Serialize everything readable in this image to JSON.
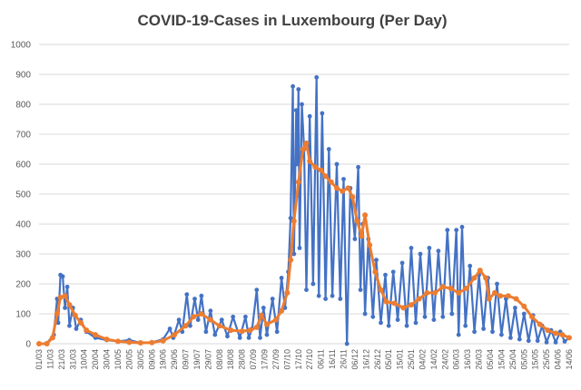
{
  "chart_data": {
    "type": "line",
    "title": "COVID-19-Cases in Luxembourg (Per Day)",
    "xlabel": "",
    "ylabel": "",
    "ylim": [
      0,
      1000
    ],
    "yticks": [
      0,
      100,
      200,
      300,
      400,
      500,
      600,
      700,
      800,
      900,
      1000
    ],
    "grid": true,
    "legend": "none",
    "x_start": "2020-03-01",
    "x_end": "2021-06-14",
    "x_tick_labels": [
      "01/03",
      "11/03",
      "21/03",
      "31/03",
      "10/04",
      "20/04",
      "30/04",
      "10/05",
      "20/05",
      "30/05",
      "09/06",
      "19/06",
      "29/06",
      "09/07",
      "19/07",
      "29/07",
      "08/08",
      "18/08",
      "28/08",
      "07/09",
      "17/09",
      "27/09",
      "07/10",
      "17/10",
      "27/10",
      "06/11",
      "16/11",
      "26/11",
      "06/12",
      "16/12",
      "26/12",
      "05/01",
      "15/01",
      "25/01",
      "04/02",
      "14/02",
      "24/02",
      "06/03",
      "16/03",
      "26/03",
      "05/04",
      "15/04",
      "25/04",
      "05/05",
      "15/05",
      "25/05",
      "04/06",
      "14/06"
    ],
    "series": [
      {
        "color": "#4472c4",
        "marker": "circle",
        "points": [
          [
            "2020-03-01",
            0
          ],
          [
            "2020-03-08",
            2
          ],
          [
            "2020-03-14",
            30
          ],
          [
            "2020-03-17",
            150
          ],
          [
            "2020-03-18",
            70
          ],
          [
            "2020-03-20",
            230
          ],
          [
            "2020-03-22",
            225
          ],
          [
            "2020-03-24",
            120
          ],
          [
            "2020-03-26",
            190
          ],
          [
            "2020-03-28",
            60
          ],
          [
            "2020-03-31",
            120
          ],
          [
            "2020-04-03",
            50
          ],
          [
            "2020-04-07",
            80
          ],
          [
            "2020-04-12",
            40
          ],
          [
            "2020-04-20",
            20
          ],
          [
            "2020-04-30",
            12
          ],
          [
            "2020-05-10",
            8
          ],
          [
            "2020-05-20",
            12
          ],
          [
            "2020-05-30",
            3
          ],
          [
            "2020-06-09",
            5
          ],
          [
            "2020-06-19",
            15
          ],
          [
            "2020-06-25",
            50
          ],
          [
            "2020-06-28",
            20
          ],
          [
            "2020-07-03",
            80
          ],
          [
            "2020-07-06",
            40
          ],
          [
            "2020-07-10",
            165
          ],
          [
            "2020-07-13",
            60
          ],
          [
            "2020-07-17",
            150
          ],
          [
            "2020-07-20",
            80
          ],
          [
            "2020-07-23",
            160
          ],
          [
            "2020-07-27",
            40
          ],
          [
            "2020-07-31",
            110
          ],
          [
            "2020-08-04",
            30
          ],
          [
            "2020-08-10",
            80
          ],
          [
            "2020-08-15",
            25
          ],
          [
            "2020-08-20",
            90
          ],
          [
            "2020-08-26",
            20
          ],
          [
            "2020-08-31",
            90
          ],
          [
            "2020-09-03",
            20
          ],
          [
            "2020-09-06",
            50
          ],
          [
            "2020-09-10",
            180
          ],
          [
            "2020-09-13",
            20
          ],
          [
            "2020-09-16",
            120
          ],
          [
            "2020-09-19",
            30
          ],
          [
            "2020-09-24",
            150
          ],
          [
            "2020-09-28",
            40
          ],
          [
            "2020-10-02",
            220
          ],
          [
            "2020-10-05",
            120
          ],
          [
            "2020-10-08",
            240
          ],
          [
            "2020-10-10",
            420
          ],
          [
            "2020-10-12",
            860
          ],
          [
            "2020-10-13",
            300
          ],
          [
            "2020-10-15",
            780
          ],
          [
            "2020-10-16",
            600
          ],
          [
            "2020-10-17",
            850
          ],
          [
            "2020-10-18",
            320
          ],
          [
            "2020-10-20",
            800
          ],
          [
            "2020-10-22",
            650
          ],
          [
            "2020-10-24",
            180
          ],
          [
            "2020-10-27",
            760
          ],
          [
            "2020-10-30",
            200
          ],
          [
            "2020-11-02",
            890
          ],
          [
            "2020-11-04",
            160
          ],
          [
            "2020-11-07",
            770
          ],
          [
            "2020-11-10",
            150
          ],
          [
            "2020-11-13",
            650
          ],
          [
            "2020-11-16",
            160
          ],
          [
            "2020-11-20",
            600
          ],
          [
            "2020-11-23",
            150
          ],
          [
            "2020-11-26",
            550
          ],
          [
            "2020-11-29",
            0
          ],
          [
            "2020-12-02",
            520
          ],
          [
            "2020-12-06",
            350
          ],
          [
            "2020-12-09",
            590
          ],
          [
            "2020-12-11",
            180
          ],
          [
            "2020-12-13",
            400
          ],
          [
            "2020-12-15",
            100
          ],
          [
            "2020-12-18",
            350
          ],
          [
            "2020-12-22",
            90
          ],
          [
            "2020-12-25",
            280
          ],
          [
            "2020-12-29",
            70
          ],
          [
            "2021-01-02",
            230
          ],
          [
            "2021-01-05",
            60
          ],
          [
            "2021-01-09",
            240
          ],
          [
            "2021-01-13",
            80
          ],
          [
            "2021-01-17",
            270
          ],
          [
            "2021-01-21",
            60
          ],
          [
            "2021-01-25",
            320
          ],
          [
            "2021-01-29",
            70
          ],
          [
            "2021-02-02",
            300
          ],
          [
            "2021-02-06",
            90
          ],
          [
            "2021-02-10",
            320
          ],
          [
            "2021-02-14",
            80
          ],
          [
            "2021-02-18",
            310
          ],
          [
            "2021-02-22",
            90
          ],
          [
            "2021-02-26",
            380
          ],
          [
            "2021-03-02",
            100
          ],
          [
            "2021-03-06",
            380
          ],
          [
            "2021-03-08",
            30
          ],
          [
            "2021-03-11",
            390
          ],
          [
            "2021-03-14",
            60
          ],
          [
            "2021-03-18",
            260
          ],
          [
            "2021-03-22",
            40
          ],
          [
            "2021-03-26",
            230
          ],
          [
            "2021-03-30",
            50
          ],
          [
            "2021-04-03",
            220
          ],
          [
            "2021-04-07",
            40
          ],
          [
            "2021-04-11",
            200
          ],
          [
            "2021-04-15",
            30
          ],
          [
            "2021-04-19",
            150
          ],
          [
            "2021-04-23",
            20
          ],
          [
            "2021-04-27",
            120
          ],
          [
            "2021-05-01",
            15
          ],
          [
            "2021-05-05",
            100
          ],
          [
            "2021-05-09",
            10
          ],
          [
            "2021-05-13",
            95
          ],
          [
            "2021-05-17",
            10
          ],
          [
            "2021-05-21",
            60
          ],
          [
            "2021-05-25",
            5
          ],
          [
            "2021-05-29",
            45
          ],
          [
            "2021-06-02",
            5
          ],
          [
            "2021-06-06",
            40
          ],
          [
            "2021-06-10",
            8
          ],
          [
            "2021-06-14",
            20
          ]
        ]
      },
      {
        "color": "#ed7d31",
        "marker": "circle",
        "points": [
          [
            "2020-03-01",
            0
          ],
          [
            "2020-03-08",
            0
          ],
          [
            "2020-03-13",
            20
          ],
          [
            "2020-03-17",
            100
          ],
          [
            "2020-03-20",
            155
          ],
          [
            "2020-03-24",
            160
          ],
          [
            "2020-03-28",
            130
          ],
          [
            "2020-04-02",
            95
          ],
          [
            "2020-04-07",
            70
          ],
          [
            "2020-04-12",
            45
          ],
          [
            "2020-04-20",
            30
          ],
          [
            "2020-04-30",
            15
          ],
          [
            "2020-05-10",
            8
          ],
          [
            "2020-05-20",
            5
          ],
          [
            "2020-05-30",
            3
          ],
          [
            "2020-06-09",
            4
          ],
          [
            "2020-06-19",
            10
          ],
          [
            "2020-06-29",
            30
          ],
          [
            "2020-07-09",
            60
          ],
          [
            "2020-07-16",
            90
          ],
          [
            "2020-07-23",
            100
          ],
          [
            "2020-07-31",
            80
          ],
          [
            "2020-08-08",
            60
          ],
          [
            "2020-08-18",
            45
          ],
          [
            "2020-08-28",
            42
          ],
          [
            "2020-09-04",
            45
          ],
          [
            "2020-09-10",
            55
          ],
          [
            "2020-09-14",
            95
          ],
          [
            "2020-09-19",
            65
          ],
          [
            "2020-09-27",
            80
          ],
          [
            "2020-10-02",
            110
          ],
          [
            "2020-10-07",
            170
          ],
          [
            "2020-10-10",
            280
          ],
          [
            "2020-10-13",
            410
          ],
          [
            "2020-10-17",
            540
          ],
          [
            "2020-10-21",
            650
          ],
          [
            "2020-10-24",
            670
          ],
          [
            "2020-10-27",
            610
          ],
          [
            "2020-11-01",
            590
          ],
          [
            "2020-11-06",
            580
          ],
          [
            "2020-11-10",
            560
          ],
          [
            "2020-11-15",
            540
          ],
          [
            "2020-11-20",
            520
          ],
          [
            "2020-11-25",
            510
          ],
          [
            "2020-11-30",
            520
          ],
          [
            "2020-12-04",
            490
          ],
          [
            "2020-12-08",
            410
          ],
          [
            "2020-12-12",
            360
          ],
          [
            "2020-12-15",
            430
          ],
          [
            "2020-12-19",
            330
          ],
          [
            "2020-12-24",
            240
          ],
          [
            "2020-12-29",
            180
          ],
          [
            "2021-01-03",
            140
          ],
          [
            "2021-01-10",
            135
          ],
          [
            "2021-01-18",
            120
          ],
          [
            "2021-01-25",
            130
          ],
          [
            "2021-02-01",
            150
          ],
          [
            "2021-02-08",
            170
          ],
          [
            "2021-02-15",
            170
          ],
          [
            "2021-02-22",
            190
          ],
          [
            "2021-03-01",
            185
          ],
          [
            "2021-03-08",
            170
          ],
          [
            "2021-03-15",
            185
          ],
          [
            "2021-03-22",
            220
          ],
          [
            "2021-03-27",
            245
          ],
          [
            "2021-04-01",
            220
          ],
          [
            "2021-04-04",
            150
          ],
          [
            "2021-04-09",
            170
          ],
          [
            "2021-04-14",
            160
          ],
          [
            "2021-04-21",
            160
          ],
          [
            "2021-04-28",
            150
          ],
          [
            "2021-05-05",
            125
          ],
          [
            "2021-05-12",
            90
          ],
          [
            "2021-05-19",
            65
          ],
          [
            "2021-05-26",
            45
          ],
          [
            "2021-06-02",
            35
          ],
          [
            "2021-06-08",
            30
          ],
          [
            "2021-06-14",
            20
          ]
        ]
      }
    ]
  }
}
